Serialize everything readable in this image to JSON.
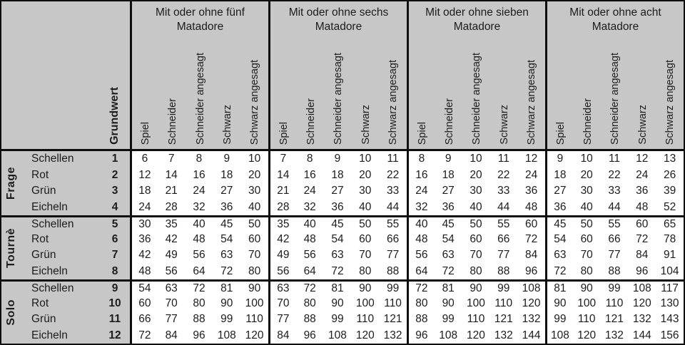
{
  "colors": {
    "header_bg": "#c7c7c7",
    "data_bg": "#ffffff",
    "line": "#0e0e0e",
    "ink": "#1c1c1c"
  },
  "table": {
    "corner_label": "Grundwert",
    "matador_groups": [
      {
        "title": "Mit oder ohne fünf Matadore"
      },
      {
        "title": "Mit oder ohne sechs Matadore"
      },
      {
        "title": "Mit oder ohne sieben Matadore"
      },
      {
        "title": "Mit oder ohne acht Matadore"
      }
    ],
    "value_column_headers": [
      "Spiel",
      "Schneider",
      "Schneider angesagt",
      "Schwarz",
      "Schwarz angesagt"
    ],
    "row_groups": [
      {
        "label": "Frage",
        "rows": [
          {
            "suit": "Schellen",
            "grundwert": "1",
            "values": [
              6,
              7,
              8,
              9,
              10,
              7,
              8,
              9,
              10,
              11,
              8,
              9,
              10,
              11,
              12,
              9,
              10,
              11,
              12,
              13
            ]
          },
          {
            "suit": "Rot",
            "grundwert": "2",
            "values": [
              12,
              14,
              16,
              18,
              20,
              14,
              16,
              18,
              20,
              22,
              16,
              18,
              20,
              22,
              24,
              18,
              20,
              22,
              24,
              26
            ]
          },
          {
            "suit": "Grün",
            "grundwert": "3",
            "values": [
              18,
              21,
              24,
              27,
              30,
              21,
              24,
              27,
              30,
              33,
              24,
              27,
              30,
              33,
              36,
              27,
              30,
              33,
              36,
              39
            ]
          },
          {
            "suit": "Eicheln",
            "grundwert": "4",
            "values": [
              24,
              28,
              32,
              36,
              40,
              28,
              32,
              36,
              40,
              44,
              32,
              36,
              40,
              44,
              48,
              36,
              40,
              44,
              48,
              52
            ]
          }
        ]
      },
      {
        "label": "Tournè",
        "rows": [
          {
            "suit": "Schellen",
            "grundwert": "5",
            "values": [
              30,
              35,
              40,
              45,
              50,
              35,
              40,
              45,
              50,
              55,
              40,
              45,
              50,
              55,
              60,
              45,
              50,
              55,
              60,
              65
            ]
          },
          {
            "suit": "Rot",
            "grundwert": "6",
            "values": [
              36,
              42,
              48,
              54,
              60,
              42,
              48,
              54,
              60,
              66,
              48,
              54,
              60,
              66,
              72,
              54,
              60,
              66,
              72,
              78
            ]
          },
          {
            "suit": "Grün",
            "grundwert": "7",
            "values": [
              42,
              49,
              56,
              63,
              70,
              49,
              56,
              63,
              70,
              77,
              56,
              63,
              70,
              77,
              84,
              63,
              70,
              77,
              84,
              91
            ]
          },
          {
            "suit": "Eicheln",
            "grundwert": "8",
            "values": [
              48,
              56,
              64,
              72,
              80,
              56,
              64,
              72,
              80,
              88,
              64,
              72,
              80,
              88,
              96,
              72,
              80,
              88,
              96,
              104
            ]
          }
        ]
      },
      {
        "label": "Solo",
        "rows": [
          {
            "suit": "Schellen",
            "grundwert": "9",
            "values": [
              54,
              63,
              72,
              81,
              90,
              63,
              72,
              81,
              90,
              99,
              72,
              81,
              90,
              99,
              108,
              81,
              90,
              99,
              108,
              117
            ]
          },
          {
            "suit": "Rot",
            "grundwert": "10",
            "values": [
              60,
              70,
              80,
              90,
              100,
              70,
              80,
              90,
              100,
              110,
              80,
              90,
              100,
              110,
              120,
              90,
              100,
              110,
              120,
              130
            ]
          },
          {
            "suit": "Grün",
            "grundwert": "11",
            "values": [
              66,
              77,
              88,
              99,
              110,
              77,
              88,
              99,
              110,
              121,
              88,
              99,
              110,
              121,
              132,
              99,
              110,
              121,
              132,
              143
            ]
          },
          {
            "suit": "Eicheln",
            "grundwert": "12",
            "values": [
              72,
              84,
              96,
              108,
              120,
              84,
              96,
              108,
              120,
              132,
              96,
              108,
              120,
              132,
              144,
              108,
              120,
              132,
              144,
              156
            ]
          }
        ]
      }
    ]
  }
}
